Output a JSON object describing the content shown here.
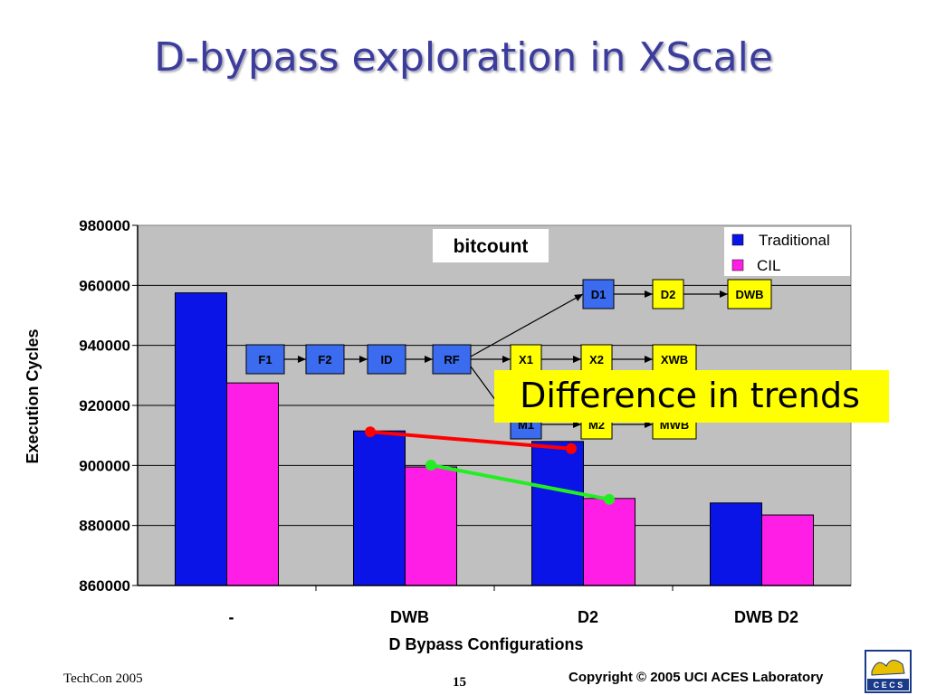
{
  "slide": {
    "title": "D-bypass exploration in XScale",
    "footer_left": "TechCon 2005",
    "page_number": "15",
    "footer_right": "Copyright © 2005  UCI ACES Laboratory",
    "logo_text": "C E C S"
  },
  "chart_data": {
    "type": "bar",
    "title": "bitcount",
    "xlabel": "D Bypass Configurations",
    "ylabel": "Execution Cycles",
    "categories": [
      "-",
      "DWB",
      "D2",
      "DWB D2"
    ],
    "series": [
      {
        "name": "Traditional",
        "values": [
          957500,
          911500,
          908000,
          887500
        ],
        "color": "#0a14e6"
      },
      {
        "name": "CIL",
        "values": [
          927500,
          899500,
          889000,
          883500
        ],
        "color": "#ff1ee6"
      }
    ],
    "ylim": [
      860000,
      980000
    ],
    "yticks": [
      860000,
      880000,
      900000,
      920000,
      940000,
      960000,
      980000
    ],
    "grid": true,
    "legend_position": "top-right",
    "plot_background": "#c0c0c0",
    "trend_lines": [
      {
        "series": "Traditional",
        "from": "DWB",
        "to": "D2",
        "color": "#ff0000"
      },
      {
        "series": "CIL",
        "from": "DWB",
        "to": "D2",
        "color": "#22ee22"
      }
    ],
    "annotation": "Difference in trends",
    "pipeline": {
      "row1": [
        "D1",
        "D2",
        "DWB"
      ],
      "row2": [
        "F1",
        "F2",
        "ID",
        "RF",
        "X1",
        "X2",
        "XWB"
      ],
      "row3": [
        "M1",
        "M2",
        "MWB"
      ],
      "blue_color": "#3b6cf0",
      "yellow_color": "#ffff00"
    }
  }
}
